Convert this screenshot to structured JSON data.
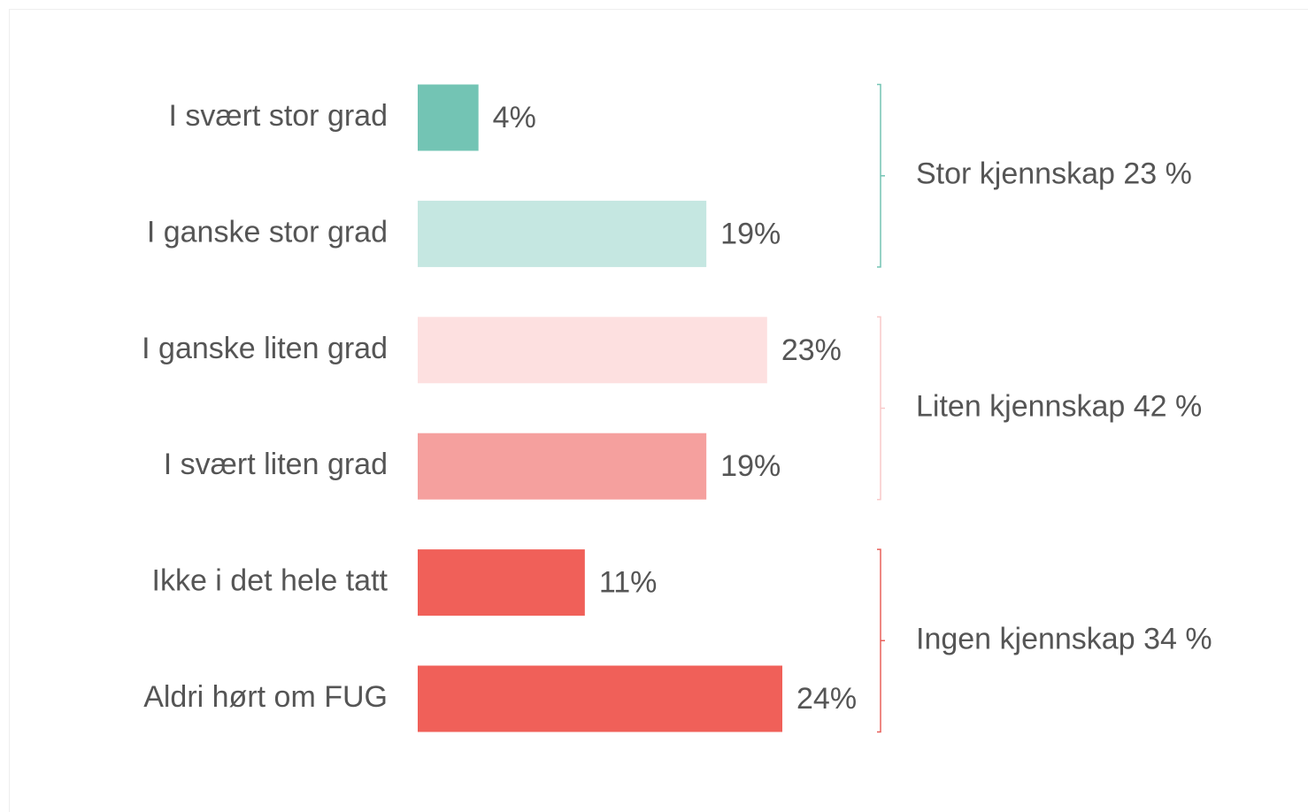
{
  "chart_data": {
    "type": "bar",
    "categories": [
      "I svært stor grad",
      "I ganske stor grad",
      "I ganske liten grad",
      "I svært liten grad",
      "Ikke i det hele tatt",
      "Aldri hørt om FUG"
    ],
    "values": [
      4,
      19,
      23,
      19,
      11,
      24
    ],
    "value_labels": [
      "4%",
      "19%",
      "23%",
      "19%",
      "11%",
      "24%"
    ],
    "colors": [
      "#73c4b4",
      "#c5e7e1",
      "#fde0e0",
      "#f5a09e",
      "#f06059",
      "#f06059"
    ],
    "groups": [
      {
        "label": "Stor kjennskap 23 %",
        "color": "#73c4b4"
      },
      {
        "label": "Liten kjennskap 42 %",
        "color": "#f9c9c9"
      },
      {
        "label": "Ingen kjennskap 34 %",
        "color": "#e8605a"
      }
    ]
  }
}
